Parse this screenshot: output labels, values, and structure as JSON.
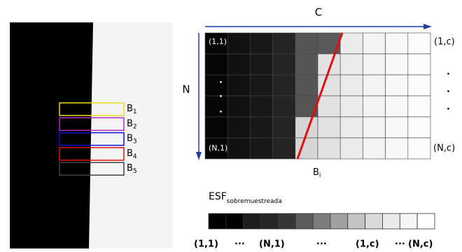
{
  "image_boxes": [
    {
      "label": "B",
      "sub": "1"
    },
    {
      "label": "B",
      "sub": "2"
    },
    {
      "label": "B",
      "sub": "3"
    },
    {
      "label": "B",
      "sub": "4"
    },
    {
      "label": "B",
      "sub": "5"
    }
  ],
  "matrix": {
    "col_axis": "C",
    "row_axis": "N",
    "corner_tl": "(1,1)",
    "corner_tr": "(1,c)",
    "corner_bl": "(N,1)",
    "corner_br": "(N,c)",
    "dot": ".",
    "line_label": "B",
    "line_sub": "i"
  },
  "esf": {
    "title": "ESF",
    "title_sub": "sobremuestreada",
    "labels": [
      "(1,1)",
      "···",
      "(N,1)",
      "···",
      "(1,c)",
      "···",
      "(N,c)"
    ]
  }
}
